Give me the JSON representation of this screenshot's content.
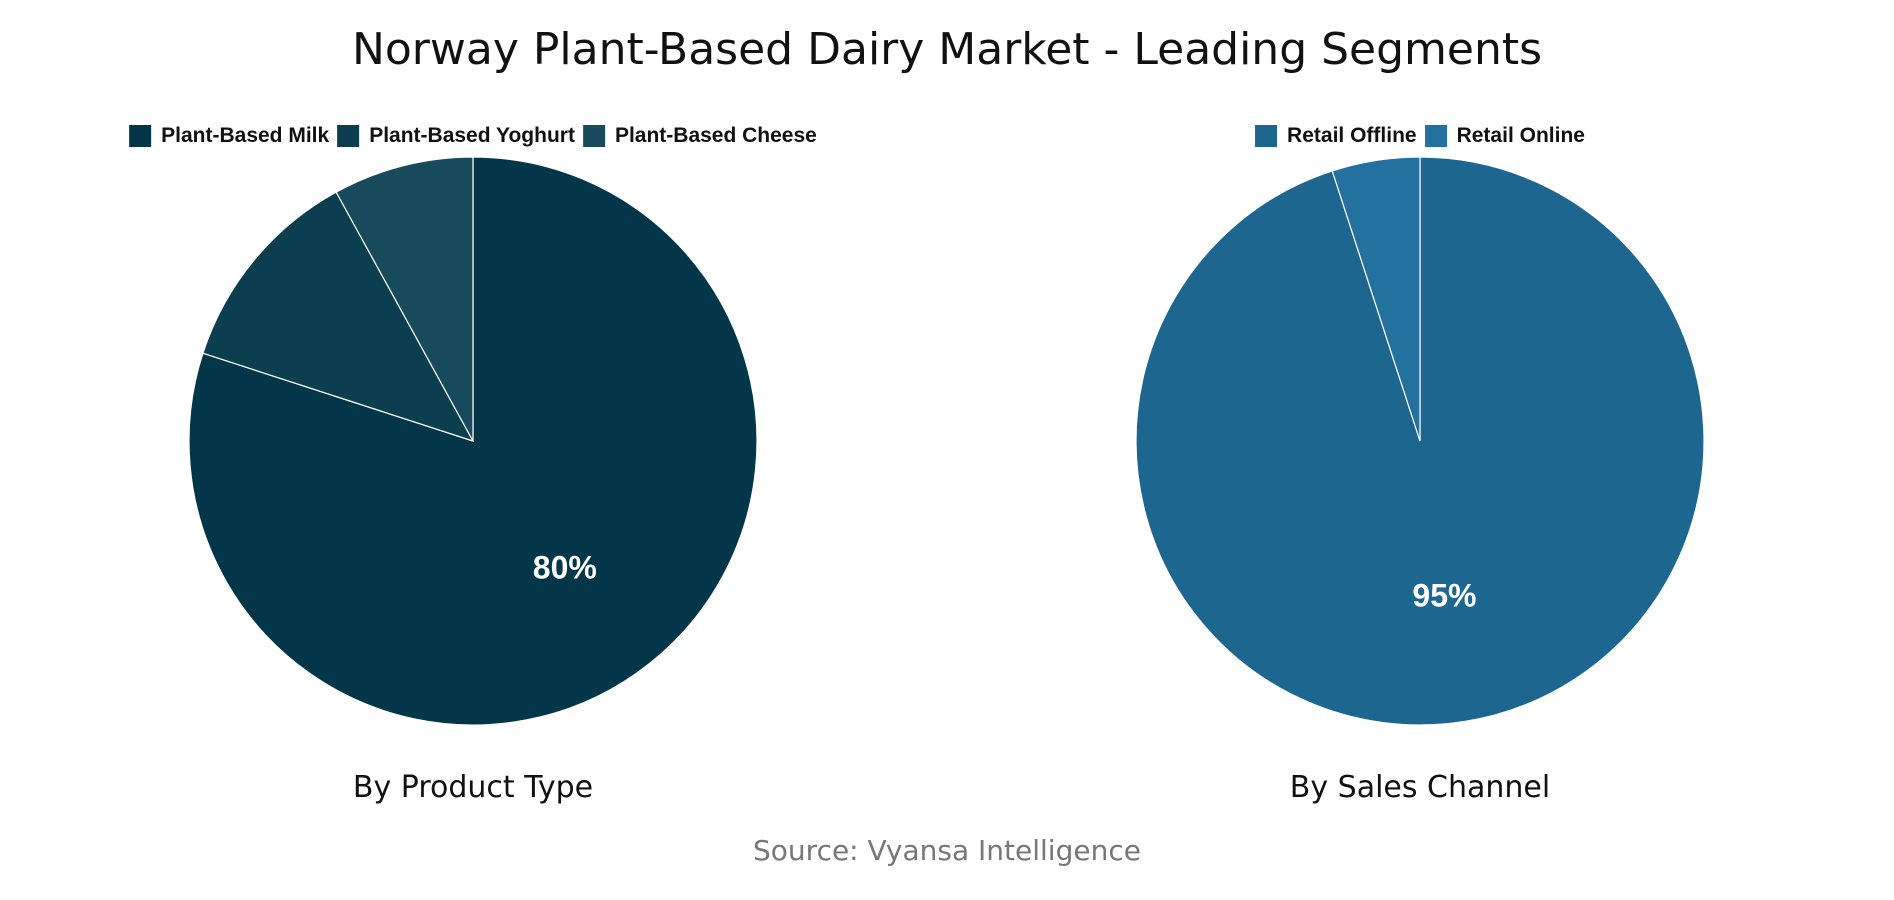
{
  "title": "Norway Plant-Based Dairy Market - Leading Segments",
  "source": "Source: Vyansa Intelligence",
  "chart_data": [
    {
      "type": "pie",
      "subtitle": "By Product Type",
      "legend_placement": "top",
      "slices": [
        {
          "name": "Plant-Based Milk",
          "value": 80,
          "color": "#033648",
          "label": "80%"
        },
        {
          "name": "Plant-Based Yoghurt",
          "value": 12,
          "color": "#0b3e4f",
          "label": ""
        },
        {
          "name": "Plant-Based Cheese",
          "value": 8,
          "color": "#174b5c",
          "label": ""
        }
      ]
    },
    {
      "type": "pie",
      "subtitle": "By Sales Channel",
      "legend_placement": "top",
      "slices": [
        {
          "name": "Retail Offline",
          "value": 95,
          "color": "#1c6690",
          "label": "95%"
        },
        {
          "name": "Retail Online",
          "value": 5,
          "color": "#23719e",
          "label": ""
        }
      ]
    }
  ]
}
